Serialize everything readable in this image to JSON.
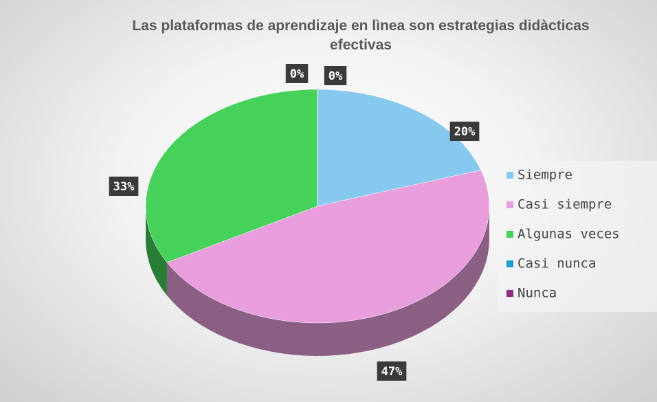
{
  "chart_data": {
    "type": "pie",
    "title": "Las plataformas de aprendizaje en lìnea son estrategias didàcticas efectivas",
    "categories": [
      "Siempre",
      "Casi siempre",
      "Algunas veces",
      "Casi nunca",
      "Nunca"
    ],
    "values": [
      20,
      47,
      33,
      0,
      0
    ],
    "value_labels": [
      "20%",
      "47%",
      "33%",
      "0%",
      "0%"
    ],
    "colors": [
      "#87c9ee",
      "#e89ddc",
      "#45d15a",
      "#1aa0c8",
      "#8b2f7e"
    ],
    "legend": "right"
  }
}
